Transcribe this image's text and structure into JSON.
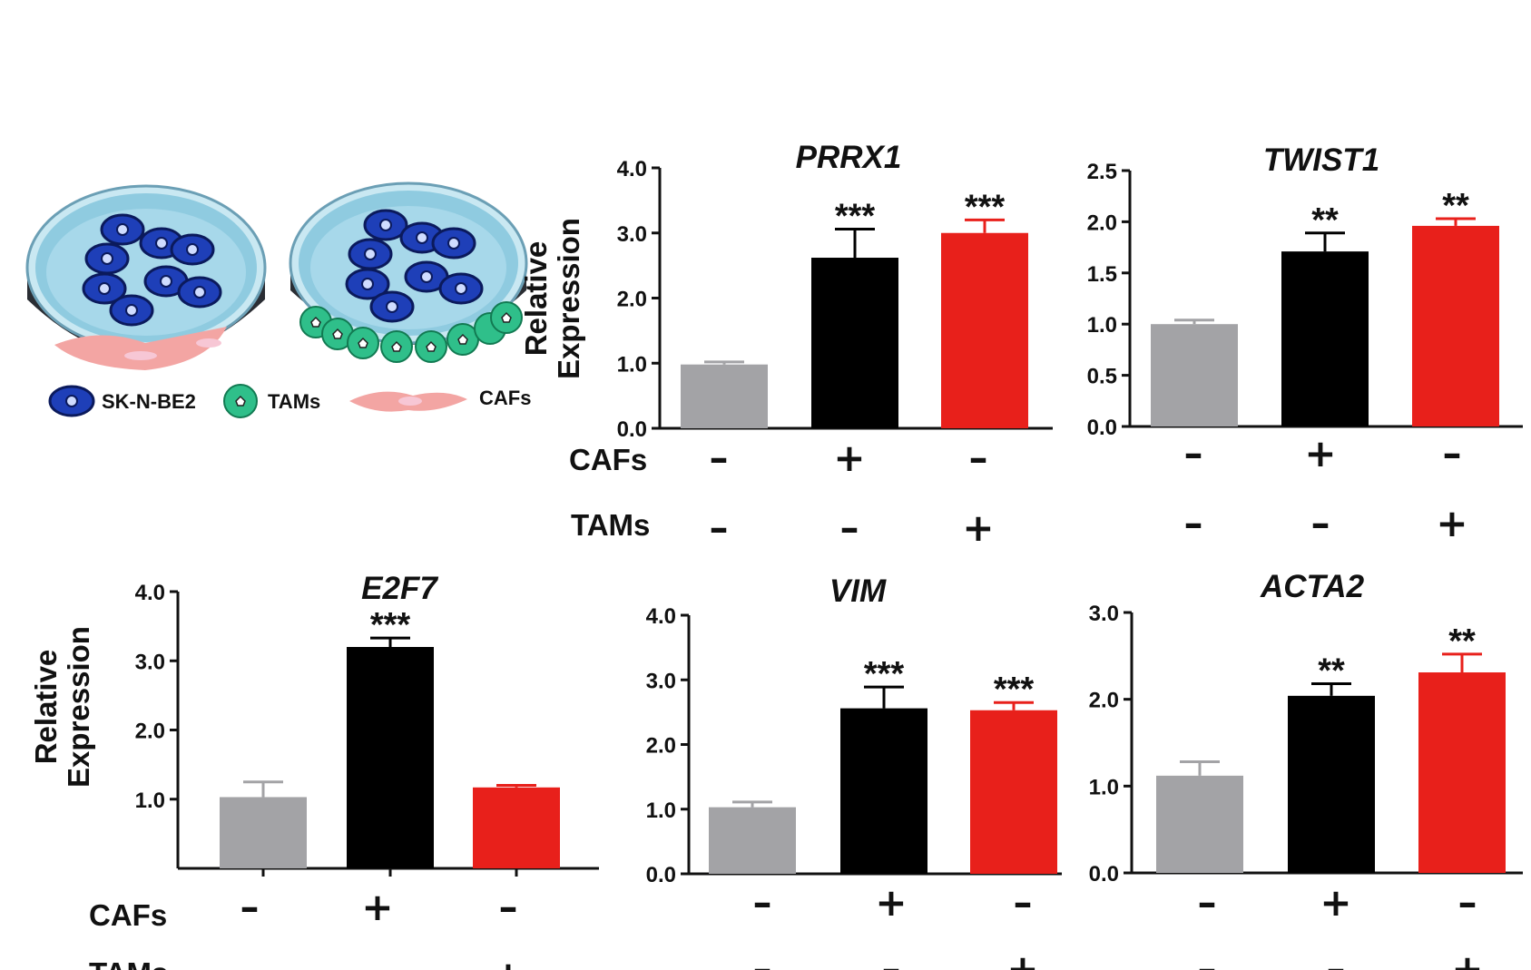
{
  "legend": {
    "sk": "SK-N-BE2",
    "tams": "TAMs",
    "cafs": "CAFs"
  },
  "conditions": {
    "row1_label": "CAFs",
    "row2_label": "TAMs",
    "cafs": [
      "–",
      "+",
      "–"
    ],
    "tams": [
      "–",
      "–",
      "+"
    ]
  },
  "colors": {
    "control": "#a3a3a6",
    "cafs": "#000000",
    "tams": "#e8201b"
  },
  "chart_data": [
    {
      "type": "bar",
      "title": "PRRX1",
      "ylabel": "Relative Expression",
      "ylim": [
        0,
        4.0
      ],
      "yticks": [
        "0.0",
        "1.0",
        "2.0",
        "3.0",
        "4.0"
      ],
      "ytick_values": [
        0,
        1,
        2,
        3,
        4
      ],
      "values": [
        0.98,
        2.62,
        3.0
      ],
      "errors": [
        0.04,
        0.44,
        0.2
      ],
      "significance": [
        "",
        "***",
        "***"
      ]
    },
    {
      "type": "bar",
      "title": "TWIST1",
      "ylabel": "",
      "ylim": [
        0,
        2.5
      ],
      "yticks": [
        "0.0",
        "0.5",
        "1.0",
        "1.5",
        "2.0",
        "2.5"
      ],
      "ytick_values": [
        0,
        0.5,
        1.0,
        1.5,
        2.0,
        2.5
      ],
      "values": [
        1.0,
        1.71,
        1.96
      ],
      "errors": [
        0.04,
        0.18,
        0.07
      ],
      "significance": [
        "",
        "**",
        "**"
      ]
    },
    {
      "type": "bar",
      "title": "E2F7",
      "ylabel": "Relative Expression",
      "ylim": [
        0,
        4.0
      ],
      "yticks": [
        "1.0",
        "2.0",
        "3.0",
        "4.0"
      ],
      "ytick_values": [
        1,
        2,
        3,
        4
      ],
      "values": [
        1.03,
        3.2,
        1.17
      ],
      "errors": [
        0.22,
        0.13,
        0.03
      ],
      "significance": [
        "",
        "***",
        ""
      ]
    },
    {
      "type": "bar",
      "title": "VIM",
      "ylabel": "",
      "ylim": [
        0,
        4.0
      ],
      "yticks": [
        "0.0",
        "1.0",
        "2.0",
        "3.0",
        "4.0"
      ],
      "ytick_values": [
        0,
        1,
        2,
        3,
        4
      ],
      "values": [
        1.03,
        2.56,
        2.53
      ],
      "errors": [
        0.08,
        0.33,
        0.12
      ],
      "significance": [
        "",
        "***",
        "***"
      ]
    },
    {
      "type": "bar",
      "title": "ACTA2",
      "ylabel": "",
      "ylim": [
        0,
        3.0
      ],
      "yticks": [
        "0.0",
        "1.0",
        "2.0",
        "3.0"
      ],
      "ytick_values": [
        0,
        1,
        2,
        3
      ],
      "values": [
        1.12,
        2.04,
        2.31
      ],
      "errors": [
        0.16,
        0.14,
        0.21
      ],
      "significance": [
        "",
        "**",
        "**"
      ]
    }
  ]
}
